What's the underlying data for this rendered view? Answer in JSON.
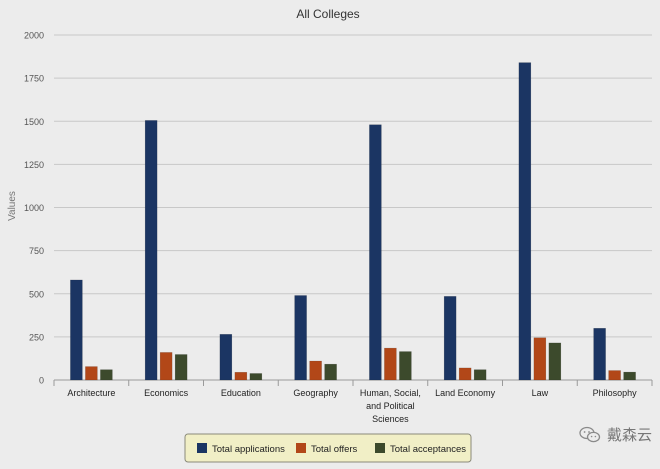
{
  "chart_data": {
    "type": "bar",
    "title": "All Colleges",
    "xlabel": "",
    "ylabel": "Values",
    "ylim": [
      0,
      2000
    ],
    "yticks": [
      0,
      250,
      500,
      750,
      1000,
      1250,
      1500,
      1750,
      2000
    ],
    "grid": true,
    "legend_position": "bottom-center",
    "categories": [
      [
        "Architecture"
      ],
      [
        "Economics"
      ],
      [
        "Education"
      ],
      [
        "Geography"
      ],
      [
        "Human, Social,",
        "and Political",
        "Sciences"
      ],
      [
        "Land Economy"
      ],
      [
        "Law"
      ],
      [
        "Philosophy"
      ]
    ],
    "series": [
      {
        "name": "Total applications",
        "color": "#1b3563",
        "values": [
          580,
          1505,
          265,
          490,
          1480,
          485,
          1840,
          300
        ]
      },
      {
        "name": "Total offers",
        "color": "#b24718",
        "values": [
          78,
          160,
          45,
          110,
          185,
          70,
          245,
          55
        ]
      },
      {
        "name": "Total acceptances",
        "color": "#3c4a2c",
        "values": [
          60,
          148,
          38,
          92,
          165,
          60,
          215,
          46
        ]
      }
    ]
  },
  "watermark": {
    "text": "戴森云",
    "icon": "wechat-icon"
  }
}
